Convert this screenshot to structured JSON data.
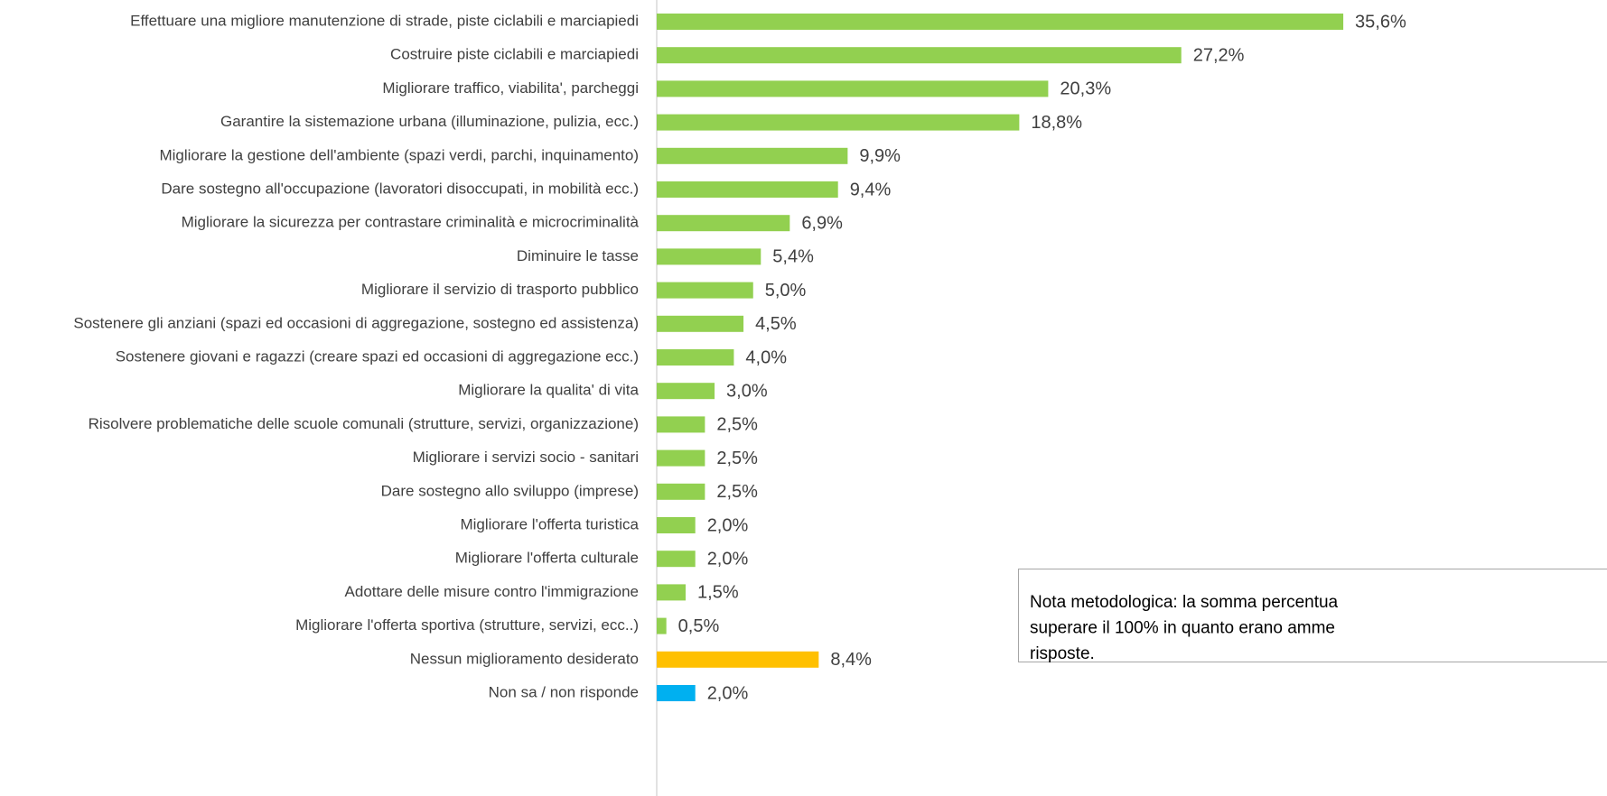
{
  "chart_data": {
    "type": "bar",
    "orientation": "horizontal",
    "categories": [
      "Effettuare una migliore manutenzione di strade, piste ciclabili e marciapiedi",
      "Costruire piste ciclabili e marciapiedi",
      "Migliorare traffico, viabilita', parcheggi",
      "Garantire la sistemazione urbana (illuminazione, pulizia, ecc.)",
      "Migliorare la gestione dell'ambiente (spazi verdi, parchi, inquinamento)",
      "Dare sostegno all'occupazione (lavoratori disoccupati, in mobilità ecc.)",
      "Migliorare la sicurezza  per contrastare criminalità e microcriminalità",
      "Diminuire le tasse",
      "Migliorare il servizio di trasporto pubblico",
      "Sostenere gli anziani (spazi ed occasioni di aggregazione, sostegno ed assistenza)",
      "Sostenere giovani e ragazzi (creare spazi ed occasioni di aggregazione ecc.)",
      "Migliorare la qualita' di vita",
      "Risolvere problematiche delle scuole comunali  (strutture, servizi, organizzazione)",
      "Migliorare i servizi socio - sanitari",
      "Dare sostegno allo sviluppo (imprese)",
      "Migliorare l'offerta turistica",
      "Migliorare l'offerta culturale",
      "Adottare delle misure contro l'immigrazione",
      "Migliorare l'offerta sportiva (strutture, servizi, ecc..)",
      "Nessun miglioramento desiderato",
      "Non sa / non risponde"
    ],
    "values": [
      35.6,
      27.2,
      20.3,
      18.8,
      9.9,
      9.4,
      6.9,
      5.4,
      5.0,
      4.5,
      4.0,
      3.0,
      2.5,
      2.5,
      2.5,
      2.0,
      2.0,
      1.5,
      0.5,
      8.4,
      2.0
    ],
    "value_labels": [
      "35,6%",
      "27,2%",
      "20,3%",
      "18,8%",
      "9,9%",
      "9,4%",
      "6,9%",
      "5,4%",
      "5,0%",
      "4,5%",
      "4,0%",
      "3,0%",
      "2,5%",
      "2,5%",
      "2,5%",
      "2,0%",
      "2,0%",
      "1,5%",
      "0,5%",
      "8,4%",
      "2,0%"
    ],
    "colors": [
      "#92d050",
      "#92d050",
      "#92d050",
      "#92d050",
      "#92d050",
      "#92d050",
      "#92d050",
      "#92d050",
      "#92d050",
      "#92d050",
      "#92d050",
      "#92d050",
      "#92d050",
      "#92d050",
      "#92d050",
      "#92d050",
      "#92d050",
      "#92d050",
      "#92d050",
      "#ffc000",
      "#00b0f0"
    ],
    "xlim": [
      0,
      40
    ],
    "annotation": [
      "Nota metodologica: la somma percentua",
      "superare il 100% in quanto erano amme",
      "risposte."
    ]
  }
}
